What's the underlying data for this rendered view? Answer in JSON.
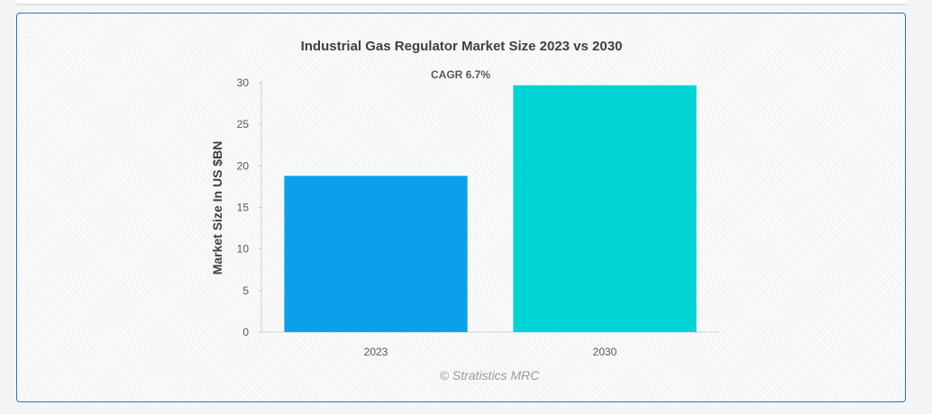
{
  "chart_data": {
    "type": "bar",
    "title": "Industrial Gas Regulator Market Size 2023 vs 2030",
    "subtitle": "CAGR 6.7%",
    "xlabel": "",
    "ylabel": "Market Size In US $BN",
    "categories": [
      "2023",
      "2030"
    ],
    "values": [
      18.8,
      29.7
    ],
    "colors": [
      "#0aa0ea",
      "#00d4d4"
    ],
    "ylim": [
      0,
      30
    ],
    "yticks": [
      0,
      5,
      10,
      15,
      20,
      25,
      30
    ],
    "grid": false,
    "legend": "none"
  },
  "credit": "© Stratistics MRC"
}
